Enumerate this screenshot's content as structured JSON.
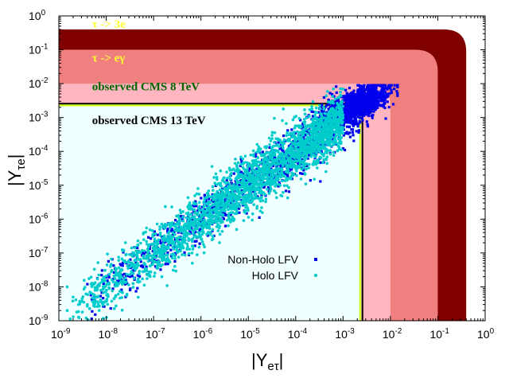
{
  "chart_data": {
    "type": "scatter",
    "xscale": "log",
    "yscale": "log",
    "xlim": [
      1e-09,
      1
    ],
    "ylim": [
      1e-09,
      1
    ],
    "xlabel": "|Y",
    "xlabel_sub": "eτ",
    "xlabel_end": "|",
    "ylabel": "|Y",
    "ylabel_sub": "τe",
    "ylabel_end": "|",
    "ticks": [
      {
        "base": "10",
        "exp": "-9",
        "value": -9
      },
      {
        "base": "10",
        "exp": "-8",
        "value": -8
      },
      {
        "base": "10",
        "exp": "-7",
        "value": -7
      },
      {
        "base": "10",
        "exp": "-6",
        "value": -6
      },
      {
        "base": "10",
        "exp": "-5",
        "value": -5
      },
      {
        "base": "10",
        "exp": "-4",
        "value": -4
      },
      {
        "base": "10",
        "exp": "-3",
        "value": -3
      },
      {
        "base": "10",
        "exp": "-2",
        "value": -2
      },
      {
        "base": "10",
        "exp": "-1",
        "value": -1
      },
      {
        "base": "10",
        "exp": "0",
        "value": 0
      }
    ],
    "regions": [
      {
        "name": "tau-3e",
        "label": "τ -> 3e",
        "bound_log10": -0.4,
        "fill": "#800000",
        "text_color": "#ffff33",
        "label_pos_log10": [
          -8.3,
          -0.35
        ]
      },
      {
        "name": "tau-egamma",
        "label": "τ -> eγ",
        "bound_log10": -1.0,
        "fill": "#f08080",
        "text_color": "#ffff33",
        "label_pos_log10": [
          -8.3,
          -1.35
        ]
      },
      {
        "name": "cms-8tev",
        "label": "observed CMS 8 TeV",
        "bound_log10": -2.0,
        "fill": "#ffb6c1",
        "text_color": "#006400",
        "label_pos_log10": [
          -8.3,
          -2.2
        ]
      },
      {
        "name": "cms-13tev",
        "label": "observed CMS 13 TeV",
        "bound_log10": -2.62,
        "fill": "#f0ffff",
        "text_color": "#000000",
        "label_pos_log10": [
          -8.3,
          -3.2
        ]
      }
    ],
    "boundary_lines": [
      {
        "name": "cms-8tev-line",
        "bound_log10": -2.59,
        "color": "#000000"
      },
      {
        "name": "cms-13tev-line",
        "bound_log10": -2.64,
        "color": "#ccff00"
      }
    ],
    "series": [
      {
        "name": "Non-Holo LFV",
        "color": "#0000ee",
        "marker": "square",
        "distribution": {
          "x_log10": [
            -8.5,
            -2.3
          ],
          "log10_ratio_y_over_x": 0.0,
          "spread": 0.35,
          "top_cluster_center_log10": [
            -2.7,
            -2.6
          ]
        },
        "outliers": [
          {
            "x": 4e-09,
            "y": 1.2e-08
          },
          {
            "x": 6e-08,
            "y": 1e-07
          },
          {
            "x": 0.0005,
            "y": 0.001
          },
          {
            "x": 0.012,
            "y": 0.007
          }
        ]
      },
      {
        "name": "Holo LFV",
        "color": "#00cccc",
        "marker": "circle",
        "distribution": {
          "x_log10": [
            -8.8,
            -3.0
          ],
          "log10_ratio_y_over_x": 0.0,
          "spread": 0.4
        },
        "outliers": [
          {
            "x": 1.5e-09,
            "y": 1e-08
          },
          {
            "x": 1.5e-09,
            "y": 2e-09
          },
          {
            "x": 2e-09,
            "y": 5e-09
          },
          {
            "x": 4e-09,
            "y": 3e-09
          }
        ]
      }
    ],
    "legend": {
      "position": "bottom-right-inner"
    }
  }
}
